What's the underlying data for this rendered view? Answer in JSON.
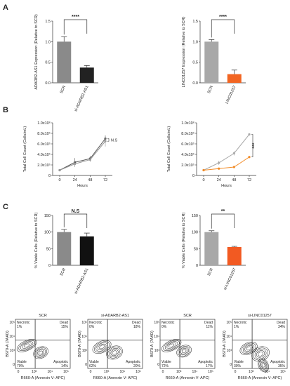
{
  "panels": {
    "a": "A",
    "b": "B",
    "c": "C"
  },
  "chart_data": [
    {
      "id": "A1",
      "type": "bar",
      "categories": [
        "SCR",
        "si-ADARB2-AS1"
      ],
      "values": [
        1.0,
        0.37
      ],
      "errors": [
        0.12,
        0.05
      ],
      "colors": [
        "#8a8a8a",
        "#222222"
      ],
      "ylabel": "ADARB2-AS1 Expression (Relative to SCR)",
      "ylim": [
        0,
        1.5
      ],
      "yticks": [
        "0.0",
        "0.5",
        "1.0",
        "1.5"
      ],
      "significance": "****"
    },
    {
      "id": "A2",
      "type": "bar",
      "categories": [
        "SCR",
        "LINC01257"
      ],
      "values": [
        1.0,
        0.21
      ],
      "errors": [
        0.05,
        0.1
      ],
      "colors": [
        "#a8a8a8",
        "#f26522"
      ],
      "ylabel": "LINC01257 Expression (Relative to SCR)",
      "ylim": [
        0,
        1.5
      ],
      "yticks": [
        "0.0",
        "0.5",
        "1.0",
        "1.5"
      ],
      "significance": "****"
    },
    {
      "id": "B1",
      "type": "line",
      "x": [
        0,
        24,
        48,
        72
      ],
      "xticks": [
        "0",
        "24",
        "48",
        "72"
      ],
      "xlabel": "Hours",
      "ylabel": "Total Cell Count (Cells/mL)",
      "ylim": [
        0,
        1000000
      ],
      "yticks": [
        "0",
        "2.0x10⁵",
        "4.0x10⁵",
        "6.0x10⁵",
        "8.0x10⁵",
        "1.0x10⁶"
      ],
      "series": [
        {
          "values": [
            100000,
            250000,
            320000,
            700000
          ],
          "errors": [
            20000,
            80000,
            50000,
            60000
          ],
          "color": "#555555"
        },
        {
          "values": [
            100000,
            220000,
            300000,
            650000
          ],
          "errors": [
            20000,
            60000,
            40000,
            100000
          ],
          "color": "#999999"
        }
      ],
      "significance": "N.S"
    },
    {
      "id": "B2",
      "type": "line",
      "x": [
        0,
        24,
        48,
        72
      ],
      "xticks": [
        "0",
        "24",
        "48",
        "72"
      ],
      "xlabel": "Hours",
      "ylabel": "Total Cell Count (Cells/mL)",
      "ylim": [
        0,
        1000000
      ],
      "yticks": [
        "0",
        "2.0x10⁵",
        "4.0x10⁵",
        "6.0x10⁵",
        "8.0x10⁵",
        "1.0x10⁶"
      ],
      "series": [
        {
          "values": [
            100000,
            240000,
            420000,
            780000
          ],
          "errors": [
            15000,
            40000,
            40000,
            20000
          ],
          "color": "#aaaaaa"
        },
        {
          "values": [
            100000,
            130000,
            160000,
            350000
          ],
          "errors": [
            10000,
            15000,
            15000,
            20000
          ],
          "color": "#f28c28"
        }
      ],
      "significance": "***"
    },
    {
      "id": "C1",
      "type": "bar",
      "categories": [
        "SCR",
        "si-ADARB2-AS1"
      ],
      "values": [
        100,
        87
      ],
      "errors": [
        8,
        10
      ],
      "colors": [
        "#8a8a8a",
        "#111111"
      ],
      "ylabel": "% Viable Cells (Relative to SCR)",
      "ylim": [
        0,
        150
      ],
      "yticks": [
        "0",
        "50",
        "100",
        "150"
      ],
      "significance": "N.S"
    },
    {
      "id": "C2",
      "type": "bar",
      "categories": [
        "SCR",
        "si-LINC01257"
      ],
      "values": [
        100,
        55
      ],
      "errors": [
        4,
        2
      ],
      "colors": [
        "#a8a8a8",
        "#f25a22"
      ],
      "ylabel": "% Viable Cells (Relative to SCR)",
      "ylim": [
        0,
        150
      ],
      "yticks": [
        "0",
        "50",
        "100",
        "150"
      ],
      "significance": "**"
    }
  ],
  "flow": {
    "xlabel": "R660-A (Annexin V- APC)",
    "ylabel": "B670-A (7AAD)",
    "quadrant_labels": {
      "necrotic": "Necrotic",
      "dead": "Dead",
      "viable": "Viable",
      "apoptotic": "Apoptotic"
    },
    "yticks": [
      "10⁵",
      "10⁴",
      "10³",
      "0"
    ],
    "xticks": [
      "0",
      "10³",
      "10⁴",
      "10⁵"
    ],
    "plots": [
      {
        "title": "SCR",
        "necrotic": "1%",
        "dead": "15%",
        "viable": "70%",
        "apoptotic": "14%"
      },
      {
        "title": "si-ADARB2-AS1",
        "necrotic": "0%",
        "dead": "18%",
        "viable": "62%",
        "apoptotic": "20%"
      },
      {
        "title": "SCR",
        "necrotic": "0%",
        "dead": "11%",
        "viable": "72%",
        "apoptotic": "17%"
      },
      {
        "title": "si-LINC01257",
        "necrotic": "1%",
        "dead": "34%",
        "viable": "30%",
        "apoptotic": "35%"
      }
    ]
  }
}
